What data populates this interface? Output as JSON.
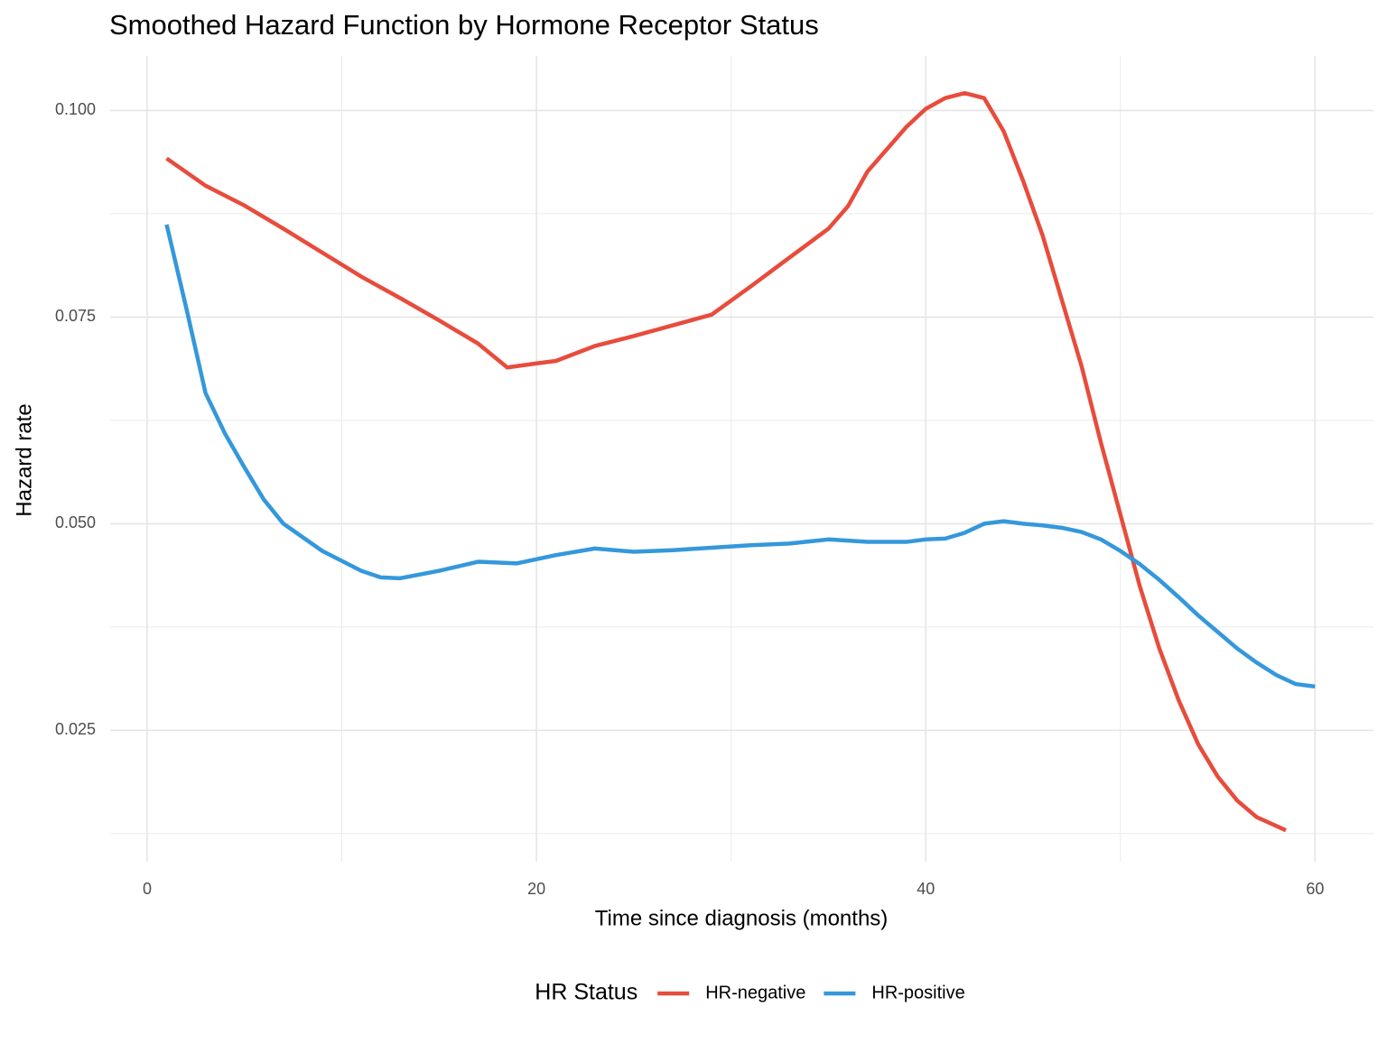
{
  "chart_data": {
    "type": "line",
    "title": "Smoothed Hazard Function by Hormone Receptor Status",
    "x_label": "Time since diagnosis (months)",
    "y_label": "Hazard rate",
    "legend_title": "HR Status",
    "legend_position": "bottom",
    "grid": true,
    "xlim": [
      -1.9,
      63
    ],
    "ylim": [
      0.0091,
      0.1066
    ],
    "xticks": [
      0,
      20,
      40,
      60
    ],
    "yticks": [
      0.025,
      {
        "value": 0.05,
        "label": "0.050"
      },
      {
        "value": 0.075,
        "label": "0.075"
      },
      {
        "value": 0.1,
        "label": "0.100"
      }
    ],
    "series": [
      {
        "name": "HR-negative",
        "color": "#e74c3c",
        "x": [
          1,
          3,
          5,
          7,
          9,
          11,
          13,
          15,
          17,
          18.5,
          20,
          21,
          23,
          25,
          27,
          29,
          31,
          33,
          35,
          36,
          37,
          39,
          40,
          41,
          42,
          43,
          44,
          45,
          46,
          47,
          48,
          49,
          50,
          51,
          52,
          53,
          54,
          55,
          56,
          57,
          58.5
        ],
        "values": [
          0.0942,
          0.0909,
          0.0885,
          0.0857,
          0.0828,
          0.0799,
          0.0773,
          0.0746,
          0.0718,
          0.0689,
          0.0694,
          0.0697,
          0.0715,
          0.0727,
          0.074,
          0.0753,
          0.0787,
          0.0822,
          0.0857,
          0.0884,
          0.0926,
          0.098,
          0.1002,
          0.1015,
          0.1021,
          0.1015,
          0.0975,
          0.0915,
          0.0849,
          0.077,
          0.0691,
          0.0598,
          0.0511,
          0.0424,
          0.0349,
          0.0286,
          0.0233,
          0.0194,
          0.0165,
          0.0145,
          0.0129
        ]
      },
      {
        "name": "HR-positive",
        "color": "#3498db",
        "x": [
          1,
          2,
          3,
          4,
          5,
          6,
          7,
          9,
          11,
          12,
          13,
          15,
          17,
          19,
          21,
          23,
          25,
          27,
          29,
          31,
          33,
          35,
          37,
          39,
          40,
          41,
          42,
          43,
          44,
          45,
          46,
          47,
          48,
          49,
          50,
          51,
          52,
          53,
          54,
          55,
          56,
          57,
          58,
          59,
          60
        ],
        "values": [
          0.0862,
          0.0762,
          0.0658,
          0.0609,
          0.0568,
          0.0529,
          0.05,
          0.0467,
          0.0443,
          0.0435,
          0.0434,
          0.0443,
          0.0454,
          0.0452,
          0.0462,
          0.047,
          0.0466,
          0.0468,
          0.0471,
          0.0474,
          0.0476,
          0.0481,
          0.0478,
          0.0478,
          0.0481,
          0.0482,
          0.0489,
          0.05,
          0.0503,
          0.05,
          0.0498,
          0.0495,
          0.049,
          0.0481,
          0.0467,
          0.0451,
          0.0432,
          0.0411,
          0.0389,
          0.0369,
          0.0349,
          0.0332,
          0.0317,
          0.0306,
          0.0303
        ]
      }
    ]
  }
}
